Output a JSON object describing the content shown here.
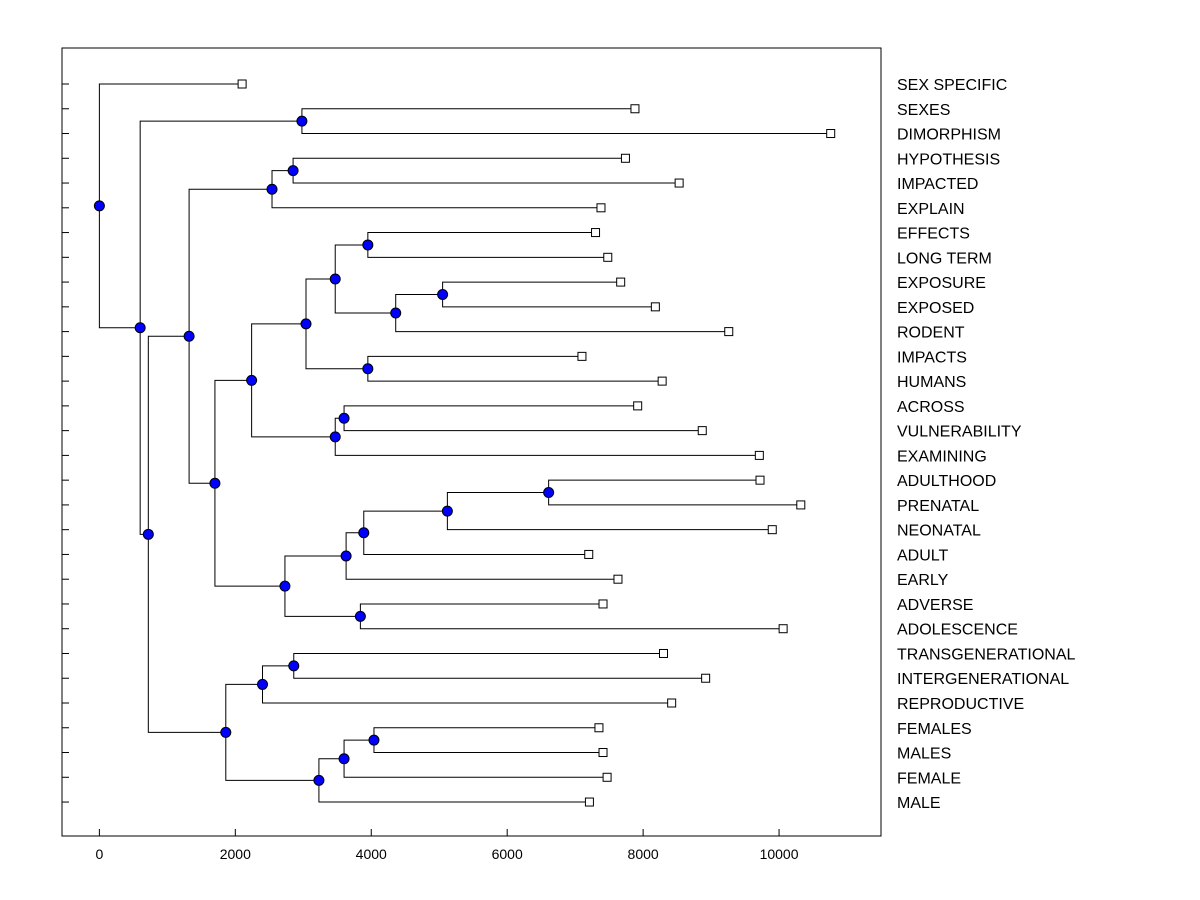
{
  "chart_data": {
    "type": "dendrogram",
    "orientation": "horizontal",
    "xlim": [
      -550,
      11500
    ],
    "x_ticks": [
      0,
      2000,
      4000,
      6000,
      8000,
      10000
    ],
    "x_tick_labels": [
      "0",
      "2000",
      "4000",
      "6000",
      "8000",
      "10000"
    ],
    "colors": {
      "node_fill": "#0000ff",
      "node_stroke": "#000000",
      "leaf_fill": "#ffffff",
      "line": "#000000"
    },
    "leaves": [
      {
        "label": "SEX SPECIFIC",
        "x": 2100
      },
      {
        "label": "SEXES",
        "x": 7880
      },
      {
        "label": "DIMORPHISM",
        "x": 10760
      },
      {
        "label": "HYPOTHESIS",
        "x": 7740
      },
      {
        "label": "IMPACTED",
        "x": 8530
      },
      {
        "label": "EXPLAIN",
        "x": 7380
      },
      {
        "label": "EFFECTS",
        "x": 7300
      },
      {
        "label": "LONG TERM",
        "x": 7480
      },
      {
        "label": "EXPOSURE",
        "x": 7670
      },
      {
        "label": "EXPOSED",
        "x": 8180
      },
      {
        "label": "RODENT",
        "x": 9260
      },
      {
        "label": "IMPACTS",
        "x": 7100
      },
      {
        "label": "HUMANS",
        "x": 8280
      },
      {
        "label": "ACROSS",
        "x": 7920
      },
      {
        "label": "VULNERABILITY",
        "x": 8870
      },
      {
        "label": "EXAMINING",
        "x": 9710
      },
      {
        "label": "ADULTHOOD",
        "x": 9720
      },
      {
        "label": "PRENATAL",
        "x": 10320
      },
      {
        "label": "NEONATAL",
        "x": 9900
      },
      {
        "label": "ADULT",
        "x": 7200
      },
      {
        "label": "EARLY",
        "x": 7630
      },
      {
        "label": "ADVERSE",
        "x": 7410
      },
      {
        "label": "ADOLESCENCE",
        "x": 10060
      },
      {
        "label": "TRANSGENERATIONAL",
        "x": 8300
      },
      {
        "label": "INTERGENERATIONAL",
        "x": 8920
      },
      {
        "label": "REPRODUCTIVE",
        "x": 8420
      },
      {
        "label": "FEMALES",
        "x": 7350
      },
      {
        "label": "MALES",
        "x": 7410
      },
      {
        "label": "FEMALE",
        "x": 7470
      },
      {
        "label": "MALE",
        "x": 7210
      }
    ],
    "nodes": [
      {
        "id": "N1",
        "x": 5050,
        "children": [
          "L8",
          "L9"
        ]
      },
      {
        "id": "N2",
        "x": 4360,
        "children": [
          "N1",
          "L10"
        ]
      },
      {
        "id": "N3",
        "x": 3950,
        "children": [
          "L6",
          "L7"
        ]
      },
      {
        "id": "N4",
        "x": 3470,
        "children": [
          "N3",
          "N2"
        ]
      },
      {
        "id": "N5",
        "x": 3950,
        "children": [
          "L11",
          "L12"
        ]
      },
      {
        "id": "N6",
        "x": 3040,
        "children": [
          "N4",
          "N5"
        ]
      },
      {
        "id": "N7",
        "x": 3600,
        "children": [
          "L13",
          "L14"
        ]
      },
      {
        "id": "N8",
        "x": 3470,
        "children": [
          "N7",
          "L15"
        ]
      },
      {
        "id": "N9",
        "x": 2240,
        "children": [
          "N6",
          "N8"
        ]
      },
      {
        "id": "N10",
        "x": 6610,
        "children": [
          "L16",
          "L17"
        ]
      },
      {
        "id": "N11",
        "x": 5120,
        "children": [
          "N10",
          "L18"
        ]
      },
      {
        "id": "N12",
        "x": 3890,
        "children": [
          "N11",
          "L19"
        ]
      },
      {
        "id": "N13",
        "x": 3630,
        "children": [
          "N12",
          "L20"
        ]
      },
      {
        "id": "N14",
        "x": 3840,
        "children": [
          "L21",
          "L22"
        ]
      },
      {
        "id": "N15",
        "x": 2730,
        "children": [
          "N13",
          "N14"
        ]
      },
      {
        "id": "N16",
        "x": 1700,
        "children": [
          "N9",
          "N15"
        ]
      },
      {
        "id": "N17",
        "x": 2850,
        "children": [
          "L3",
          "L4"
        ]
      },
      {
        "id": "N18",
        "x": 2540,
        "children": [
          "N17",
          "L5"
        ]
      },
      {
        "id": "N19",
        "x": 1320,
        "children": [
          "N18",
          "N16"
        ]
      },
      {
        "id": "N20",
        "x": 4040,
        "children": [
          "L26",
          "L27"
        ]
      },
      {
        "id": "N21",
        "x": 3600,
        "children": [
          "N20",
          "L28"
        ]
      },
      {
        "id": "N22",
        "x": 3230,
        "children": [
          "N21",
          "L29"
        ]
      },
      {
        "id": "N23",
        "x": 2860,
        "children": [
          "L23",
          "L24"
        ]
      },
      {
        "id": "N24",
        "x": 2400,
        "children": [
          "N23",
          "L25"
        ]
      },
      {
        "id": "N25",
        "x": 1860,
        "children": [
          "N24",
          "N22"
        ]
      },
      {
        "id": "N26",
        "x": 720,
        "children": [
          "N19",
          "N25"
        ]
      },
      {
        "id": "N27",
        "x": 2980,
        "children": [
          "L1",
          "L2"
        ]
      },
      {
        "id": "N28",
        "x": 600,
        "children": [
          "N27",
          "N26"
        ]
      },
      {
        "id": "N29",
        "x": 0,
        "children": [
          "L0",
          "N28"
        ]
      }
    ]
  }
}
